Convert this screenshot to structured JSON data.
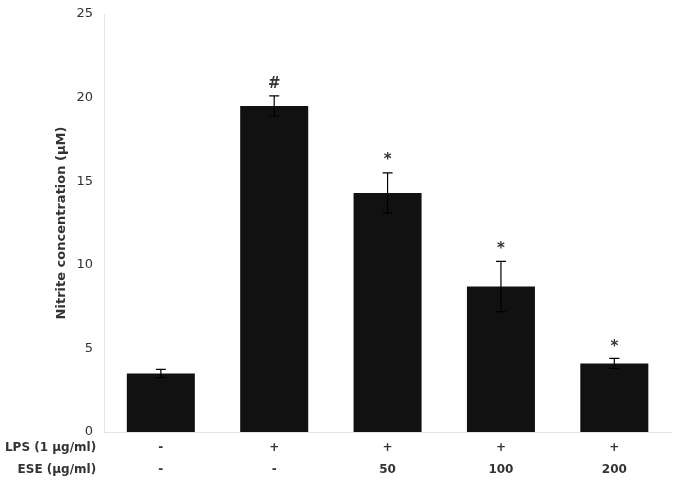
{
  "chart_data": {
    "type": "bar",
    "categories": [
      [
        "-",
        "-"
      ],
      [
        "+",
        "-"
      ],
      [
        "+",
        "50"
      ],
      [
        "+",
        "100"
      ],
      [
        "+",
        "200"
      ]
    ],
    "category_rows": [
      "LPS (1 μg/ml)",
      "ESE (μg/ml)"
    ],
    "values": [
      3.5,
      19.5,
      14.3,
      8.7,
      4.1
    ],
    "errors": [
      0.25,
      0.6,
      1.2,
      1.5,
      0.3
    ],
    "color": "#111111",
    "ylabel": "Nitrite concentration (μM)",
    "ylim": [
      0,
      25
    ],
    "yticks": [
      0,
      5,
      10,
      15,
      20,
      25
    ],
    "grid": false,
    "annotations": [
      {
        "text": "#",
        "category_index": 1,
        "y": 20.35
      },
      {
        "text": "*",
        "category_index": 2,
        "y": 15.8
      },
      {
        "text": "*",
        "category_index": 3,
        "y": 10.5
      },
      {
        "text": "*",
        "category_index": 4,
        "y": 4.6
      }
    ]
  }
}
